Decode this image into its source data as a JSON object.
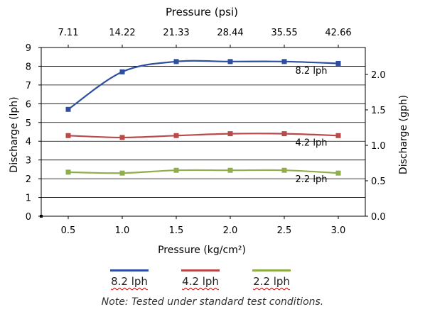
{
  "chart_data": {
    "type": "line",
    "title": "",
    "xlabel": "Pressure (kg/cm²)",
    "x2label": "Pressure (psi)",
    "ylabel": "Discharge (lph)",
    "y2label": "Discharge (gph)",
    "x": [
      0.5,
      1.0,
      1.5,
      2.0,
      2.5,
      3.0
    ],
    "x_ticks": [
      "0.5",
      "1.0",
      "1.5",
      "2.0",
      "2.5",
      "3.0"
    ],
    "x2_ticks": [
      "7.11",
      "14.22",
      "21.33",
      "28.44",
      "35.55",
      "42.66"
    ],
    "xlim": [
      0.25,
      3.25
    ],
    "ylim": [
      0,
      9
    ],
    "y_ticks": [
      "0",
      "1",
      "2",
      "3",
      "4",
      "5",
      "6",
      "7",
      "8",
      "9"
    ],
    "y2lim": [
      0,
      2.38
    ],
    "y2_ticks": [
      "0.0",
      "0.5",
      "1.0",
      "1.5",
      "2.0"
    ],
    "grid": "horizontal",
    "legend_position": "bottom",
    "series": [
      {
        "name": "8.2 lph",
        "color": "#2e4f9f",
        "values": [
          5.7,
          7.7,
          8.25,
          8.25,
          8.25,
          8.15
        ],
        "label": "8.2 lph"
      },
      {
        "name": "4.2 lph",
        "color": "#b84a4a",
        "values": [
          4.3,
          4.2,
          4.3,
          4.4,
          4.4,
          4.3
        ],
        "label": "4.2 lph"
      },
      {
        "name": "2.2 lph",
        "color": "#8fae4a",
        "values": [
          2.35,
          2.3,
          2.45,
          2.45,
          2.45,
          2.3
        ],
        "label": "2.2 lph"
      }
    ],
    "note": "Note: Tested under standard test conditions."
  }
}
